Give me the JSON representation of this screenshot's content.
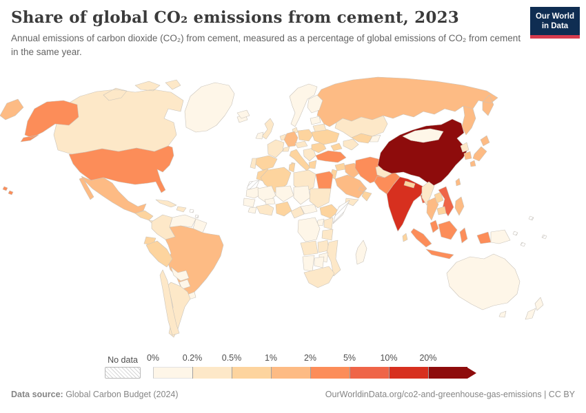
{
  "header": {
    "title": "Share of global CO₂ emissions from cement, 2023",
    "subtitle": "Annual emissions of carbon dioxide (CO₂) from cement, measured as a percentage of global emissions of CO₂ from cement in the same year."
  },
  "logo": {
    "line1": "Our World",
    "line2": "in Data",
    "bg": "#0f2d52",
    "accent": "#d73c4e"
  },
  "footer": {
    "source_label": "Data source:",
    "source_value": " Global Carbon Budget (2024)",
    "link": "OurWorldinData.org/co2-and-greenhouse-gas-emissions | CC BY"
  },
  "chart_data": {
    "type": "choropleth-map",
    "title": "Share of global CO₂ emissions from cement, 2023",
    "year": "2023",
    "unit": "% of global cement CO₂ emissions",
    "legend": {
      "no_data_label": "No data",
      "bin_edges": [
        "0%",
        "0.2%",
        "0.5%",
        "1%",
        "2%",
        "5%",
        "10%",
        "20%"
      ],
      "bin_ranges": [
        "0-0.2%",
        "0.2-0.5%",
        "0.5-1%",
        "1-2%",
        "2-5%",
        "5-10%",
        "10-20%",
        "20%+"
      ],
      "bin_colors": [
        "#fef6e8",
        "#fde8c8",
        "#fdd49e",
        "#fdbb84",
        "#fc8d59",
        "#ef6548",
        "#d7301f",
        "#8e0c0c"
      ],
      "no_data_fill": "hatched"
    },
    "values": {
      "Greenland": "0-0.2%",
      "Canada": "0.2-0.5%",
      "United States": "2-5%",
      "Mexico": "1-2%",
      "Guatemala": "0.5-1%",
      "Central America": "0.2-0.5%",
      "Cuba": "0.2-0.5%",
      "Hispaniola": "0.2-0.5%",
      "Caribbean": "No data",
      "Colombia": "0.2-0.5%",
      "Venezuela": "0-0.2%",
      "Guyanas": "0-0.2%",
      "Ecuador": "0.5-1%",
      "Peru": "0.5-1%",
      "Brazil": "1-2%",
      "Bolivia": "0-0.2%",
      "Paraguay": "0-0.2%",
      "Uruguay": "0-0.2%",
      "Chile": "0.2-0.5%",
      "Argentina": "0.2-0.5%",
      "Iceland": "0-0.2%",
      "United Kingdom": "0.2-0.5%",
      "Ireland": "0-0.2%",
      "Norway and Sweden": "0-0.2%",
      "Finland": "0-0.2%",
      "Denmark": "0.2-0.5%",
      "France": "0.2-0.5%",
      "Spain": "0.5-1%",
      "Portugal": "0.2-0.5%",
      "Benelux": "0.2-0.5%",
      "Germany": "1-2%",
      "Switzerland": "0.2-0.5%",
      "Italy": "0.5-1%",
      "Austria and Czechia": "0.2-0.5%",
      "Poland": "0.5-1%",
      "Balkans": "0.2-0.5%",
      "Greece": "0.5-1%",
      "Romania": "0.5-1%",
      "Ukraine": "0.5-1%",
      "Belarus": "0.2-0.5%",
      "Baltic states": "0-0.2%",
      "Russia": "1-2%",
      "Kazakhstan": "0.2-0.5%",
      "Uzbekistan": "0.5-1%",
      "Turkmenistan": "0.2-0.5%",
      "Kyrgyzstan": "0-0.2%",
      "Caucasus": "0.5-1%",
      "Turkey": "2-5%",
      "Syria": "0.5-1%",
      "Levant": "0.5-1%",
      "Iraq": "1-2%",
      "Iran": "2-5%",
      "Saudi Arabia": "1-2%",
      "Yemen": "0.2-0.5%",
      "Oman": "0.5-1%",
      "United Arab Emirates": "1-2%",
      "Afghanistan": "0.2-0.5%",
      "Pakistan": "2-5%",
      "India": "10-20%",
      "Nepal": "0.5-1%",
      "Bangladesh": "5-10%",
      "Sri Lanka": "0.5-1%",
      "China": "20%+",
      "Mongolia": "0-0.2%",
      "North Korea": "0.2-0.5%",
      "South Korea": "1-2%",
      "Japan": "1-2%",
      "Taiwan": "1-2%",
      "Myanmar": "0.2-0.5%",
      "Thailand": "1-2%",
      "Laos": "0.5-1%",
      "Vietnam": "5-10%",
      "Cambodia": "0.5-1%",
      "Malaysia": "2-5%",
      "Indonesia": "2-5%",
      "Philippines": "1-2%",
      "Papua New Guinea": "0-0.2%",
      "Australia": "0-0.2%",
      "New Zealand": "0-0.2%",
      "Pacific Islands": "No data",
      "Morocco": "0.5-1%",
      "Western Sahara": "No data",
      "Algeria": "0.5-1%",
      "Tunisia": "0.5-1%",
      "Libya": "0.2-0.5%",
      "Egypt": "2-5%",
      "Mauritania": "0-0.2%",
      "Mali": "0-0.2%",
      "Niger": "0-0.2%",
      "Chad": "0-0.2%",
      "Sudan": "0.2-0.5%",
      "West Africa": "0-0.2%",
      "Ghana and Ivory Coast": "0.2-0.5%",
      "Burkina Faso": "0-0.2%",
      "Nigeria": "0.5-1%",
      "Cameroon": "0.2-0.5%",
      "Central African Republic": "0-0.2%",
      "Ethiopia": "0.5-1%",
      "Somalia": "No data",
      "Kenya": "0.2-0.5%",
      "Uganda": "0-0.2%",
      "DR Congo": "0-0.2%",
      "Tanzania": "0.2-0.5%",
      "Angola": "0.2-0.5%",
      "Zambia": "0.2-0.5%",
      "Mozambique": "0.2-0.5%",
      "Zimbabwe": "0-0.2%",
      "Namibia": "0-0.2%",
      "Botswana": "0-0.2%",
      "South Africa": "0.2-0.5%",
      "Madagascar": "0-0.2%"
    }
  }
}
